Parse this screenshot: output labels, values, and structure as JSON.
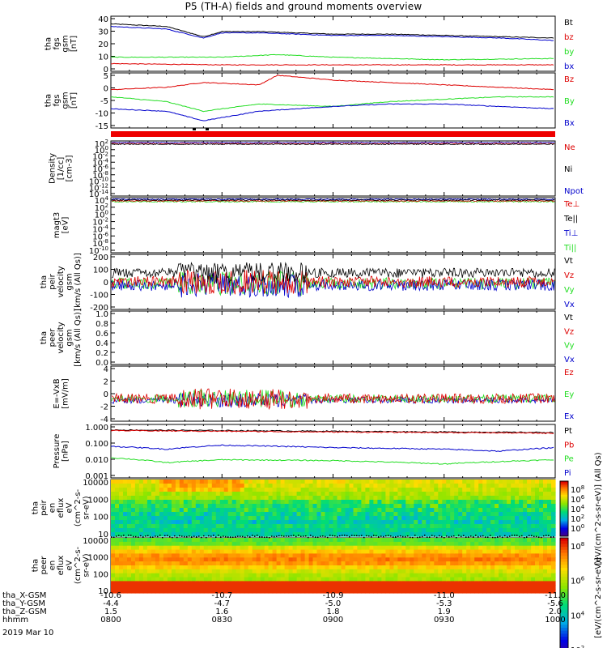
{
  "title": "P5 (TH-A) fields and ground moments overview",
  "date_label": "2019 Mar 10",
  "colors": {
    "black": "#000000",
    "red": "#dd0000",
    "green": "#22dd22",
    "blue": "#0000cc"
  },
  "chart_data": [
    {
      "type": "line",
      "panel": "fgs-magnitude",
      "ylabel": [
        "tha",
        "fgs",
        "gsm",
        "[nT]"
      ],
      "ylim": [
        -2,
        41
      ],
      "yticks": [
        "40",
        "30",
        "20",
        "10",
        "0"
      ],
      "series": [
        {
          "name": "Bt",
          "color": "black",
          "points": [
            [
              800,
              35
            ],
            [
              815,
              33
            ],
            [
              825,
              25
            ],
            [
              830,
              29
            ],
            [
              840,
              29
            ],
            [
              900,
              27
            ],
            [
              915,
              27
            ],
            [
              930,
              26
            ],
            [
              945,
              25
            ],
            [
              1000,
              24
            ]
          ]
        },
        {
          "name": "bz",
          "color": "red",
          "points": [
            [
              800,
              4
            ],
            [
              830,
              3
            ],
            [
              900,
              3
            ],
            [
              930,
              3
            ],
            [
              1000,
              3
            ]
          ]
        },
        {
          "name": "by",
          "color": "green",
          "points": [
            [
              800,
              9
            ],
            [
              830,
              9
            ],
            [
              845,
              11
            ],
            [
              900,
              9
            ],
            [
              930,
              7
            ],
            [
              1000,
              8
            ]
          ]
        },
        {
          "name": "bx",
          "color": "blue",
          "points": [
            [
              800,
              33
            ],
            [
              815,
              31
            ],
            [
              825,
              24
            ],
            [
              830,
              28
            ],
            [
              840,
              28
            ],
            [
              900,
              26
            ],
            [
              915,
              26
            ],
            [
              930,
              25
            ],
            [
              945,
              24
            ],
            [
              1000,
              22
            ]
          ]
        }
      ]
    },
    {
      "type": "line",
      "panel": "fgs-components",
      "ylabel": [
        "tha",
        "fgs",
        "gsm",
        "[nT]"
      ],
      "ylim": [
        -17,
        6
      ],
      "yticks": [
        "5",
        "0",
        "-5",
        "-10",
        "-15"
      ],
      "series": [
        {
          "name": "Bz",
          "color": "red",
          "points": [
            [
              800,
              -1
            ],
            [
              815,
              0
            ],
            [
              825,
              2
            ],
            [
              840,
              1
            ],
            [
              845,
              5
            ],
            [
              900,
              3
            ],
            [
              915,
              2
            ],
            [
              930,
              1
            ],
            [
              945,
              0
            ],
            [
              1000,
              -1
            ]
          ]
        },
        {
          "name": "By",
          "color": "green",
          "points": [
            [
              800,
              -4
            ],
            [
              815,
              -6
            ],
            [
              825,
              -10
            ],
            [
              840,
              -7
            ],
            [
              900,
              -8
            ],
            [
              915,
              -6
            ],
            [
              930,
              -5
            ],
            [
              945,
              -4
            ],
            [
              1000,
              -4
            ]
          ]
        },
        {
          "name": "Bx",
          "color": "blue",
          "points": [
            [
              800,
              -9
            ],
            [
              815,
              -10
            ],
            [
              825,
              -14
            ],
            [
              840,
              -10
            ],
            [
              900,
              -8
            ],
            [
              915,
              -7
            ],
            [
              930,
              -7
            ],
            [
              945,
              -8
            ],
            [
              1000,
              -9
            ]
          ]
        }
      ]
    },
    {
      "type": "line",
      "panel": "density",
      "scale": "log",
      "ylabel": [
        "Density",
        "[1/cc]",
        "[cm-3]"
      ],
      "yticks": [
        "10^2",
        "10^0",
        "10^-2",
        "10^-4",
        "10^-6",
        "10^-8",
        "10^-10",
        "10^-12",
        "10^-14"
      ],
      "series": [
        {
          "name": "Ne",
          "color": "red"
        },
        {
          "name": "Ni",
          "color": "black"
        },
        {
          "name": "Npot",
          "color": "blue"
        }
      ]
    },
    {
      "type": "line",
      "panel": "temperature",
      "scale": "log",
      "ylabel": [
        "magt3",
        "[eV]"
      ],
      "yticks": [
        "10^4",
        "10^2",
        "10^0",
        "10^-2",
        "10^-4",
        "10^-6",
        "10^-8",
        "10^-10"
      ],
      "series": [
        {
          "name": "Te⊥",
          "color": "red"
        },
        {
          "name": "Te||",
          "color": "black"
        },
        {
          "name": "Ti⊥",
          "color": "blue"
        },
        {
          "name": "Ti||",
          "color": "green"
        }
      ]
    },
    {
      "type": "line",
      "panel": "ion-velocity",
      "ylabel": [
        "tha",
        "peir",
        "velocity",
        "gsm",
        "[km/s (All Qs)]"
      ],
      "ylim": [
        -200,
        200
      ],
      "yticks": [
        "200",
        "100",
        "0",
        "-100",
        "-200"
      ],
      "series": [
        {
          "name": "Vt",
          "color": "black"
        },
        {
          "name": "Vz",
          "color": "red"
        },
        {
          "name": "Vy",
          "color": "green"
        },
        {
          "name": "Vx",
          "color": "blue"
        }
      ]
    },
    {
      "type": "line",
      "panel": "electron-velocity",
      "ylabel": [
        "tha",
        "peer",
        "velocity",
        "gsm",
        "[km/s (All Qs)]"
      ],
      "ylim": [
        0,
        1
      ],
      "yticks": [
        "1.0",
        "0.8",
        "0.6",
        "0.4",
        "0.2",
        "0.0"
      ],
      "series": [
        {
          "name": "Vt",
          "color": "black"
        },
        {
          "name": "Vz",
          "color": "red"
        },
        {
          "name": "Vy",
          "color": "green"
        },
        {
          "name": "Vx",
          "color": "blue"
        }
      ]
    },
    {
      "type": "line",
      "panel": "efield",
      "ylabel": [
        "E=-VxB",
        "[mV/m]"
      ],
      "ylim": [
        -4,
        4
      ],
      "yticks": [
        "4",
        "2",
        "0",
        "-2",
        "-4"
      ],
      "series": [
        {
          "name": "Ez",
          "color": "red"
        },
        {
          "name": "Ey",
          "color": "green"
        },
        {
          "name": "Ex",
          "color": "blue"
        }
      ]
    },
    {
      "type": "line",
      "panel": "pressure",
      "scale": "log",
      "ylabel": [
        "Pressure",
        "[nPa]"
      ],
      "yticks": [
        "1.000",
        "0.100",
        "0.010",
        "0.001"
      ],
      "series": [
        {
          "name": "Pt",
          "color": "black",
          "points": [
            [
              800,
              0.6
            ],
            [
              830,
              0.55
            ],
            [
              900,
              0.5
            ],
            [
              930,
              0.45
            ],
            [
              1000,
              0.42
            ]
          ]
        },
        {
          "name": "Pb",
          "color": "red",
          "points": [
            [
              800,
              0.55
            ],
            [
              830,
              0.5
            ],
            [
              900,
              0.45
            ],
            [
              930,
              0.42
            ],
            [
              1000,
              0.38
            ]
          ]
        },
        {
          "name": "Pe",
          "color": "green",
          "points": [
            [
              800,
              0.012
            ],
            [
              815,
              0.006
            ],
            [
              830,
              0.009
            ],
            [
              900,
              0.008
            ],
            [
              930,
              0.005
            ],
            [
              945,
              0.007
            ],
            [
              1000,
              0.009
            ]
          ]
        },
        {
          "name": "Pi",
          "color": "blue",
          "points": [
            [
              800,
              0.06
            ],
            [
              815,
              0.04
            ],
            [
              830,
              0.07
            ],
            [
              900,
              0.05
            ],
            [
              930,
              0.04
            ],
            [
              945,
              0.03
            ],
            [
              1000,
              0.05
            ]
          ]
        }
      ]
    },
    {
      "type": "heatmap",
      "panel": "ion-eflux",
      "ylabel": [
        "tha",
        "peir",
        "en",
        "eflux",
        "eV",
        "(cm^2-s-",
        "sr-eV)"
      ],
      "yticks": [
        "10000",
        "1000",
        "100",
        "10"
      ]
    },
    {
      "type": "heatmap",
      "panel": "electron-eflux",
      "ylabel": [
        "tha",
        "peer",
        "en",
        "eflux",
        "eV",
        "(cm^2-s-",
        "sr-eV)"
      ],
      "yticks": [
        "10000",
        "1000",
        "100",
        "10"
      ]
    }
  ],
  "colorbar_top": {
    "ticks": [
      "10^8",
      "10^6",
      "10^4",
      "10^2",
      "10^0"
    ],
    "label": "[eV/(cm^2-s-sr-eV)] (All Qs)"
  },
  "colorbar_bottom": {
    "ticks": [
      "10^8",
      "10^6",
      "10^4",
      "10^2"
    ],
    "label": "[eV/(cm^2-s-sr-eV)]"
  },
  "footer": {
    "labels": [
      "tha_X-GSM",
      "tha_Y-GSM",
      "tha_Z-GSM",
      "hhmm"
    ],
    "columns": [
      {
        "x": "-10.6",
        "y": "-4.4",
        "z": "1.5",
        "hhmm": "0800"
      },
      {
        "x": "-10.7",
        "y": "-4.7",
        "z": "1.6",
        "hhmm": "0830"
      },
      {
        "x": "-10.9",
        "y": "-5.0",
        "z": "1.8",
        "hhmm": "0900"
      },
      {
        "x": "-11.0",
        "y": "-5.3",
        "z": "1.9",
        "hhmm": "0930"
      },
      {
        "x": "-11.0",
        "y": "-5.6",
        "z": "2.0",
        "hhmm": "1000"
      }
    ]
  }
}
